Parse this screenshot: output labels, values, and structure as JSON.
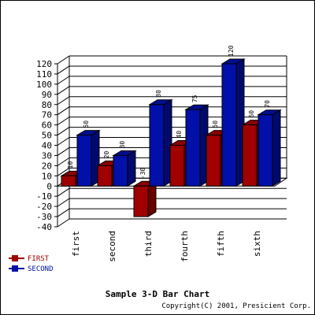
{
  "chart_data": {
    "type": "bar",
    "title": "Sample 3-D Bar Chart",
    "copyright": "Copyright(C) 2001, Presicient Corp.",
    "categories": [
      "first",
      "second",
      "third",
      "fourth",
      "fifth",
      "sixth"
    ],
    "series": [
      {
        "name": "FIRST",
        "values": [
          10,
          20,
          -30,
          40,
          50,
          60
        ],
        "color": "#a00000"
      },
      {
        "name": "SECOND",
        "values": [
          50,
          30,
          80,
          75,
          120,
          70
        ],
        "color": "#0010a8"
      }
    ],
    "ylim": [
      -40,
      120
    ],
    "y_ticks": [
      -40,
      -30,
      -20,
      -10,
      0,
      10,
      20,
      30,
      40,
      50,
      60,
      70,
      80,
      90,
      100,
      110,
      120
    ],
    "grid": true,
    "legend_position": "bottom-left",
    "three_d": true
  }
}
